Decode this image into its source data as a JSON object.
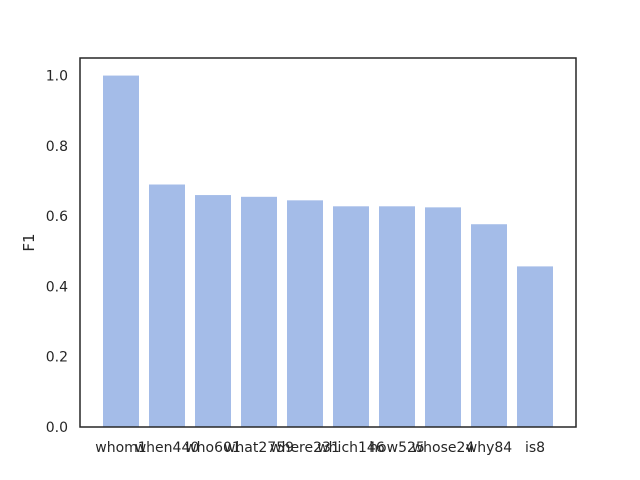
{
  "chart_data": {
    "type": "bar",
    "categories": [
      "whom1",
      "when440",
      "who601",
      "what2759",
      "where231",
      "which146",
      "how525",
      "whose24",
      "why84",
      "is8"
    ],
    "values": [
      1.0,
      0.69,
      0.66,
      0.655,
      0.645,
      0.628,
      0.628,
      0.625,
      0.577,
      0.457
    ],
    "title": "",
    "xlabel": "",
    "ylabel": "F1",
    "ylim": [
      0,
      1.05
    ],
    "yticks": [
      "0.0",
      "0.2",
      "0.4",
      "0.6",
      "0.8",
      "1.0"
    ],
    "grid": false,
    "bar_color": "#a4bce8"
  }
}
